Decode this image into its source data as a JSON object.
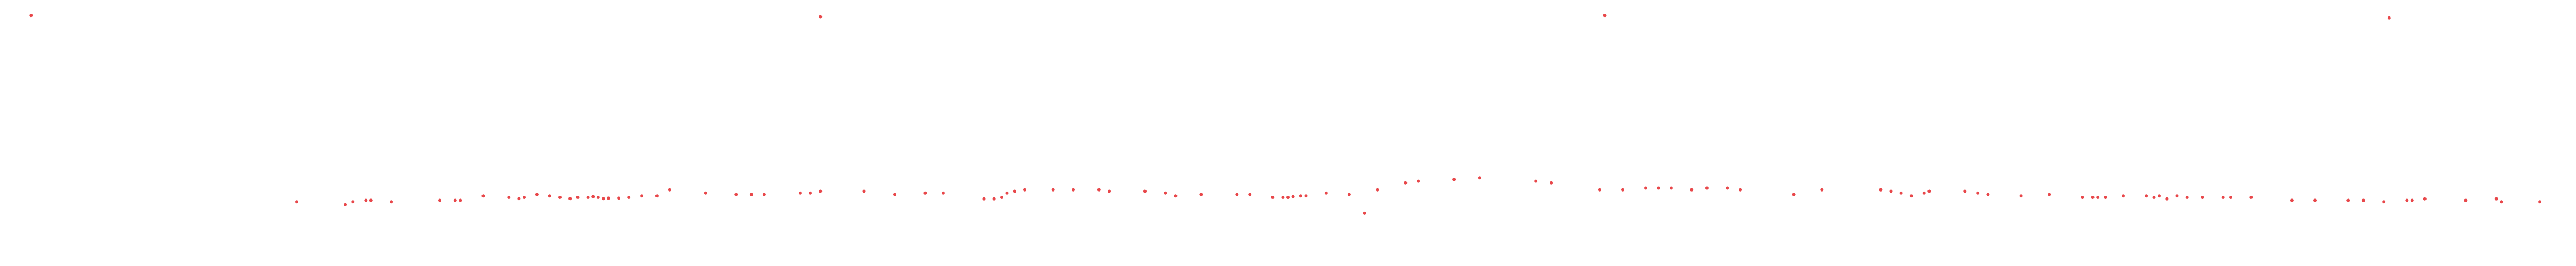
{
  "chart_data": {
    "type": "scatter",
    "title": "",
    "xlabel": "",
    "ylabel": "",
    "grid": false,
    "legend": "none",
    "axes_visible": false,
    "marker_color": "#e8474a",
    "xlim": [
      0,
      1000
    ],
    "ylim": [
      0,
      1000
    ],
    "outliers": [
      {
        "x": 8,
        "y": 980
      },
      {
        "x": 317,
        "y": 975
      },
      {
        "x": 624,
        "y": 980
      },
      {
        "x": 931,
        "y": 970
      }
    ],
    "series": [
      {
        "values": [
          {
            "x": 112,
            "y": 219
          },
          {
            "x": 131,
            "y": 207
          },
          {
            "x": 134,
            "y": 219
          },
          {
            "x": 139,
            "y": 225
          },
          {
            "x": 141,
            "y": 225
          },
          {
            "x": 149,
            "y": 219
          },
          {
            "x": 168,
            "y": 225
          },
          {
            "x": 174,
            "y": 225
          },
          {
            "x": 176,
            "y": 225
          },
          {
            "x": 185,
            "y": 243
          },
          {
            "x": 195,
            "y": 237
          },
          {
            "x": 199,
            "y": 232
          },
          {
            "x": 201,
            "y": 237
          },
          {
            "x": 206,
            "y": 249
          },
          {
            "x": 211,
            "y": 243
          },
          {
            "x": 215,
            "y": 237
          },
          {
            "x": 219,
            "y": 232
          },
          {
            "x": 222,
            "y": 237
          },
          {
            "x": 226,
            "y": 237
          },
          {
            "x": 228,
            "y": 240
          },
          {
            "x": 230,
            "y": 237
          },
          {
            "x": 232,
            "y": 232
          },
          {
            "x": 234,
            "y": 234
          },
          {
            "x": 238,
            "y": 234
          },
          {
            "x": 242,
            "y": 237
          },
          {
            "x": 247,
            "y": 243
          },
          {
            "x": 253,
            "y": 243
          },
          {
            "x": 258,
            "y": 268
          },
          {
            "x": 272,
            "y": 255
          },
          {
            "x": 284,
            "y": 249
          },
          {
            "x": 290,
            "y": 249
          },
          {
            "x": 295,
            "y": 249
          },
          {
            "x": 309,
            "y": 255
          },
          {
            "x": 313,
            "y": 255
          },
          {
            "x": 317,
            "y": 262
          },
          {
            "x": 334,
            "y": 262
          },
          {
            "x": 346,
            "y": 249
          },
          {
            "x": 358,
            "y": 255
          },
          {
            "x": 365,
            "y": 255
          },
          {
            "x": 381,
            "y": 231
          },
          {
            "x": 385,
            "y": 231
          },
          {
            "x": 388,
            "y": 237
          },
          {
            "x": 390,
            "y": 255
          },
          {
            "x": 393,
            "y": 262
          },
          {
            "x": 397,
            "y": 268
          },
          {
            "x": 408,
            "y": 268
          },
          {
            "x": 416,
            "y": 268
          },
          {
            "x": 426,
            "y": 268
          },
          {
            "x": 430,
            "y": 262
          },
          {
            "x": 444,
            "y": 262
          },
          {
            "x": 452,
            "y": 255
          },
          {
            "x": 456,
            "y": 243
          },
          {
            "x": 466,
            "y": 249
          },
          {
            "x": 480,
            "y": 249
          },
          {
            "x": 485,
            "y": 249
          },
          {
            "x": 494,
            "y": 237
          },
          {
            "x": 498,
            "y": 237
          },
          {
            "x": 500,
            "y": 237
          },
          {
            "x": 502,
            "y": 240
          },
          {
            "x": 505,
            "y": 243
          },
          {
            "x": 507,
            "y": 243
          },
          {
            "x": 515,
            "y": 255
          },
          {
            "x": 524,
            "y": 249
          },
          {
            "x": 530,
            "y": 172
          },
          {
            "x": 535,
            "y": 268
          },
          {
            "x": 546,
            "y": 296
          },
          {
            "x": 551,
            "y": 303
          },
          {
            "x": 565,
            "y": 310
          },
          {
            "x": 575,
            "y": 317
          },
          {
            "x": 597,
            "y": 303
          },
          {
            "x": 603,
            "y": 296
          },
          {
            "x": 622,
            "y": 268
          },
          {
            "x": 631,
            "y": 268
          },
          {
            "x": 640,
            "y": 275
          },
          {
            "x": 645,
            "y": 275
          },
          {
            "x": 650,
            "y": 275
          },
          {
            "x": 658,
            "y": 268
          },
          {
            "x": 664,
            "y": 275
          },
          {
            "x": 672,
            "y": 275
          },
          {
            "x": 677,
            "y": 268
          },
          {
            "x": 698,
            "y": 249
          },
          {
            "x": 709,
            "y": 268
          },
          {
            "x": 732,
            "y": 268
          },
          {
            "x": 736,
            "y": 262
          },
          {
            "x": 740,
            "y": 255
          },
          {
            "x": 744,
            "y": 243
          },
          {
            "x": 749,
            "y": 255
          },
          {
            "x": 751,
            "y": 262
          },
          {
            "x": 765,
            "y": 262
          },
          {
            "x": 770,
            "y": 255
          },
          {
            "x": 774,
            "y": 249
          },
          {
            "x": 787,
            "y": 243
          },
          {
            "x": 798,
            "y": 249
          },
          {
            "x": 811,
            "y": 237
          },
          {
            "x": 815,
            "y": 237
          },
          {
            "x": 817,
            "y": 237
          },
          {
            "x": 820,
            "y": 237
          },
          {
            "x": 827,
            "y": 243
          },
          {
            "x": 836,
            "y": 243
          },
          {
            "x": 839,
            "y": 237
          },
          {
            "x": 841,
            "y": 243
          },
          {
            "x": 844,
            "y": 231
          },
          {
            "x": 848,
            "y": 243
          },
          {
            "x": 852,
            "y": 237
          },
          {
            "x": 858,
            "y": 237
          },
          {
            "x": 866,
            "y": 237
          },
          {
            "x": 869,
            "y": 237
          },
          {
            "x": 877,
            "y": 237
          },
          {
            "x": 893,
            "y": 225
          },
          {
            "x": 902,
            "y": 225
          },
          {
            "x": 915,
            "y": 225
          },
          {
            "x": 921,
            "y": 225
          },
          {
            "x": 929,
            "y": 219
          },
          {
            "x": 938,
            "y": 225
          },
          {
            "x": 940,
            "y": 225
          },
          {
            "x": 945,
            "y": 231
          },
          {
            "x": 961,
            "y": 225
          },
          {
            "x": 973,
            "y": 231
          },
          {
            "x": 975,
            "y": 219
          },
          {
            "x": 990,
            "y": 219
          }
        ]
      }
    ]
  }
}
